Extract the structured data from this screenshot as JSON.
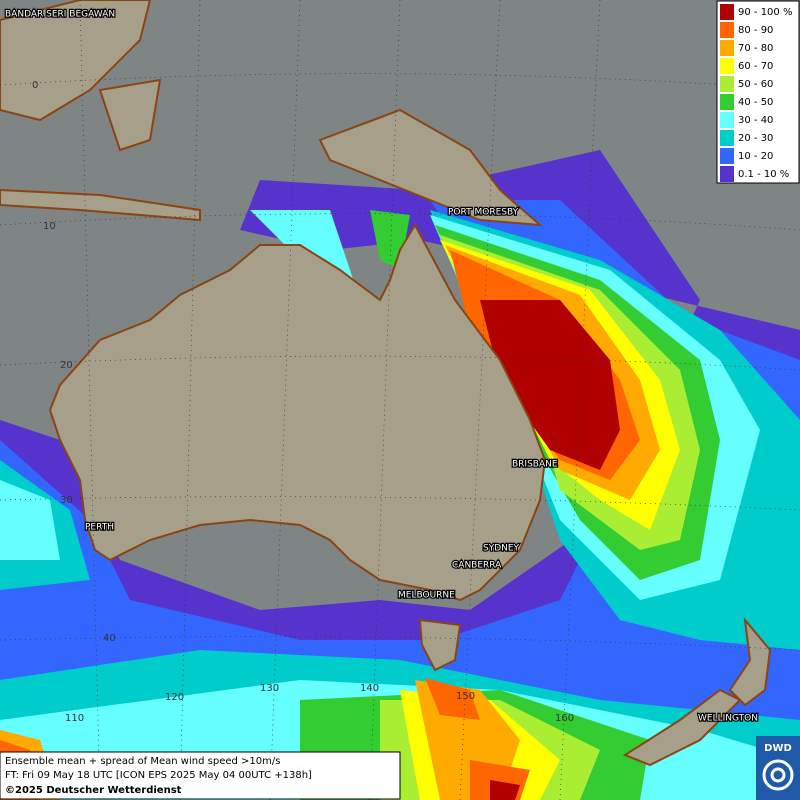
{
  "legend": {
    "items": [
      {
        "label": "90 - 100 %",
        "color": "#b00000"
      },
      {
        "label": "80 - 90",
        "color": "#ff6600"
      },
      {
        "label": "70 - 80",
        "color": "#ffaa00"
      },
      {
        "label": "60 - 70",
        "color": "#ffff00"
      },
      {
        "label": "50 - 60",
        "color": "#aaee33"
      },
      {
        "label": "40 - 50",
        "color": "#33cc33"
      },
      {
        "label": "30 - 40",
        "color": "#66ffff"
      },
      {
        "label": "20 - 30",
        "color": "#00cccc"
      },
      {
        "label": "10 - 20",
        "color": "#3366ff"
      },
      {
        "label": "0.1 - 10 %",
        "color": "#5533cc"
      }
    ]
  },
  "places": [
    "BANDAR SERI BEGAWAN",
    "PORT MORESBY",
    "BRISBANE",
    "SYDNEY",
    "CANBERRA",
    "MELBOURNE",
    "PERTH",
    "WELLINGTON"
  ],
  "grid_labels": [
    "0",
    "10",
    "20",
    "30",
    "40",
    "110",
    "120",
    "130",
    "140",
    "150",
    "160"
  ],
  "info": {
    "line1": "Ensemble mean + spread of Mean wind speed >10m/s",
    "line2": "FT: Fri 09 May 18 UTC [ICON EPS 2025 May 04 00UTC +138h]",
    "line3": "©2025 Deutscher Wetterdienst"
  },
  "logo": "DWD"
}
